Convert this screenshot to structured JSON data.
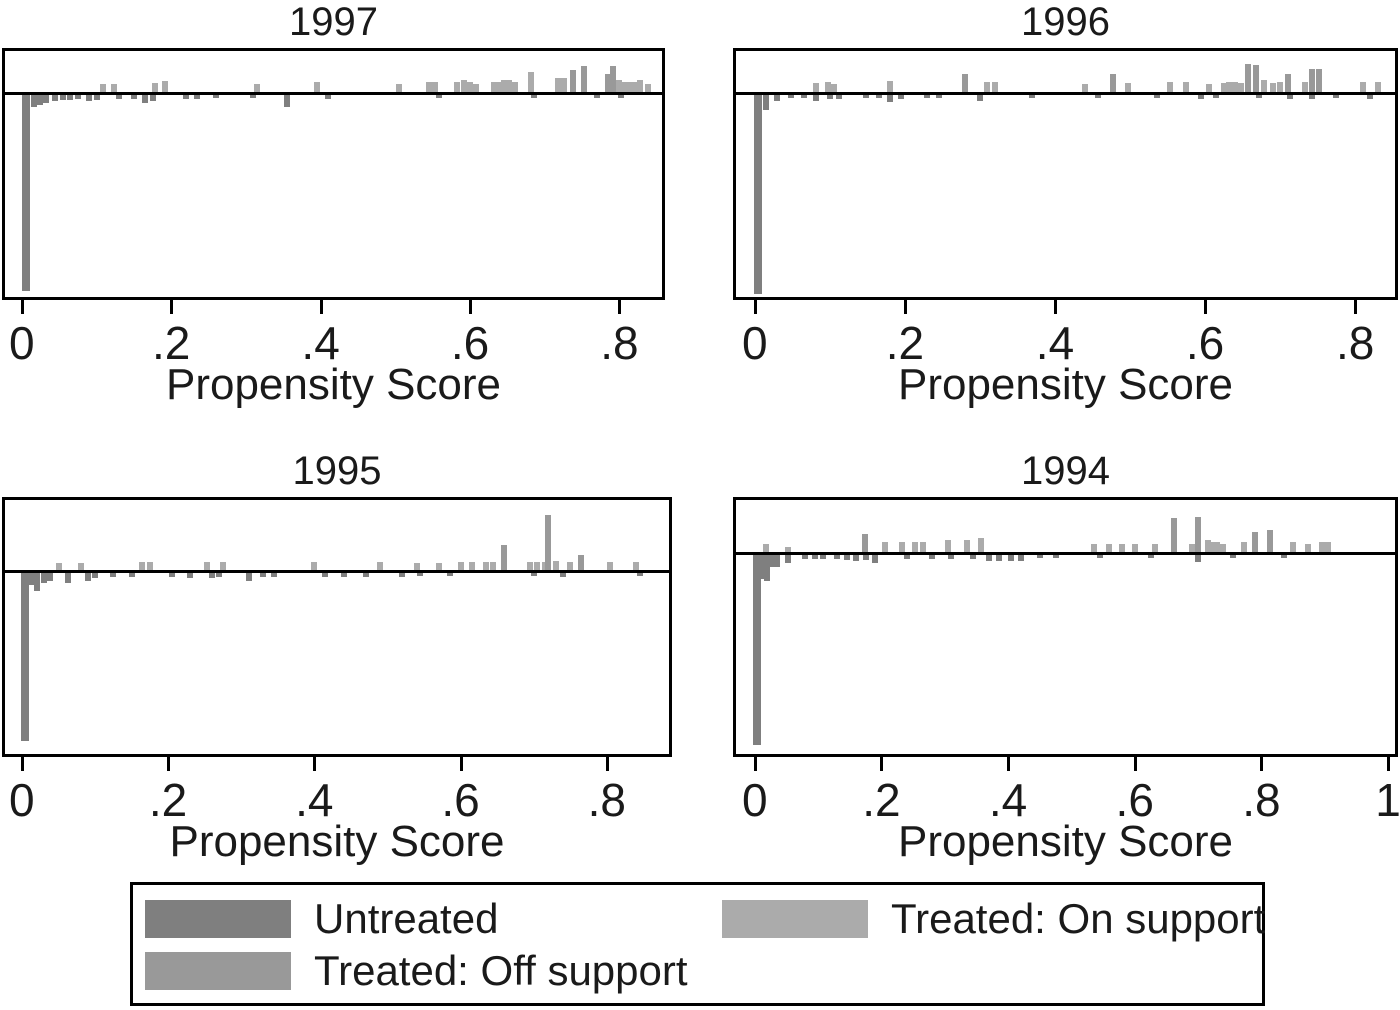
{
  "figure_background": "#ffffff",
  "colors": {
    "untreated": "#7f7f7f",
    "treated_on_support": "#ababab",
    "treated_off_support": "#999999",
    "axis": "#000000",
    "text": "#1a1a1a"
  },
  "legend": {
    "items": [
      {
        "label": "Untreated",
        "color": "#7f7f7f"
      },
      {
        "label": "Treated: On support",
        "color": "#ababab"
      },
      {
        "label": "Treated: Off support",
        "color": "#999999"
      }
    ]
  },
  "chart_data": [
    {
      "type": "bar",
      "title": "1997",
      "xlabel": "Propensity Score",
      "xlim": [
        -0.0225,
        0.857
      ],
      "grid": false,
      "note": "Mirror histogram: treated above zero line, untreated below; no y-axis ticks shown. Heights in relative density units (px of original figure).",
      "xticks": [
        {
          "v": 0.0,
          "label": "0"
        },
        {
          "v": 0.2,
          "label": ".2"
        },
        {
          "v": 0.4,
          "label": ".4"
        },
        {
          "v": 0.6,
          "label": ".6"
        },
        {
          "v": 0.8,
          "label": ".8"
        }
      ],
      "series": [
        {
          "name": "Untreated",
          "group": "untreated",
          "side": "below",
          "bars": [
            [
              0.005,
              -196
            ],
            [
              0.016,
              -12
            ],
            [
              0.024,
              -10
            ],
            [
              0.033,
              -8
            ],
            [
              0.045,
              -6
            ],
            [
              0.055,
              -5
            ],
            [
              0.065,
              -5
            ],
            [
              0.075,
              -4
            ],
            [
              0.09,
              -6
            ],
            [
              0.1,
              -5
            ],
            [
              0.13,
              -4
            ],
            [
              0.15,
              -4
            ],
            [
              0.165,
              -8
            ],
            [
              0.175,
              -6
            ],
            [
              0.22,
              -4
            ],
            [
              0.235,
              -4
            ],
            [
              0.26,
              -3
            ],
            [
              0.31,
              -3
            ],
            [
              0.355,
              -12
            ],
            [
              0.41,
              -4
            ],
            [
              0.558,
              -3
            ],
            [
              0.686,
              -3
            ],
            [
              0.77,
              -3
            ],
            [
              0.802,
              -3
            ]
          ]
        },
        {
          "name": "Treated: On support",
          "group": "treated_on_support",
          "side": "above",
          "bars": [
            [
              0.109,
              8
            ],
            [
              0.123,
              8
            ],
            [
              0.178,
              9
            ],
            [
              0.192,
              11
            ],
            [
              0.315,
              8
            ],
            [
              0.395,
              10
            ],
            [
              0.505,
              8
            ],
            [
              0.545,
              10
            ],
            [
              0.553,
              10
            ],
            [
              0.582,
              10
            ],
            [
              0.592,
              12
            ],
            [
              0.6,
              10
            ],
            [
              0.608,
              8
            ],
            [
              0.632,
              10
            ],
            [
              0.638,
              10
            ],
            [
              0.645,
              12
            ],
            [
              0.652,
              12
            ],
            [
              0.66,
              10
            ],
            [
              0.682,
              20
            ],
            [
              0.718,
              14
            ],
            [
              0.726,
              14
            ],
            [
              0.8,
              12
            ],
            [
              0.805,
              10
            ],
            [
              0.812,
              10
            ],
            [
              0.82,
              10
            ],
            [
              0.828,
              12
            ],
            [
              0.838,
              8
            ]
          ]
        },
        {
          "name": "Treated: Off support",
          "group": "treated_off_support",
          "side": "above",
          "bars": [
            [
              0.738,
              22
            ],
            [
              0.752,
              26
            ],
            [
              0.785,
              18
            ],
            [
              0.792,
              26
            ]
          ]
        }
      ]
    },
    {
      "type": "bar",
      "title": "1996",
      "xlabel": "Propensity Score",
      "xlim": [
        -0.025,
        0.853
      ],
      "grid": false,
      "xticks": [
        {
          "v": 0.0,
          "label": "0"
        },
        {
          "v": 0.2,
          "label": ".2"
        },
        {
          "v": 0.4,
          "label": ".4"
        },
        {
          "v": 0.6,
          "label": ".6"
        },
        {
          "v": 0.8,
          "label": ".8"
        }
      ],
      "series": [
        {
          "name": "Untreated",
          "group": "untreated",
          "side": "below",
          "bars": [
            [
              0.004,
              -199
            ],
            [
              0.015,
              -15
            ],
            [
              0.03,
              -6
            ],
            [
              0.048,
              -3
            ],
            [
              0.065,
              -3
            ],
            [
              0.082,
              -6
            ],
            [
              0.1,
              -4
            ],
            [
              0.112,
              -4
            ],
            [
              0.148,
              -3
            ],
            [
              0.165,
              -3
            ],
            [
              0.18,
              -7
            ],
            [
              0.195,
              -4
            ],
            [
              0.23,
              -3
            ],
            [
              0.245,
              -3
            ],
            [
              0.3,
              -6
            ],
            [
              0.37,
              -3
            ],
            [
              0.457,
              -3
            ],
            [
              0.536,
              -3
            ],
            [
              0.594,
              -4
            ],
            [
              0.614,
              -3
            ],
            [
              0.672,
              -3
            ],
            [
              0.713,
              -4
            ],
            [
              0.742,
              -4
            ],
            [
              0.775,
              -3
            ],
            [
              0.82,
              -4
            ]
          ]
        },
        {
          "name": "Treated: On support",
          "group": "treated_on_support",
          "side": "above",
          "bars": [
            [
              0.082,
              9
            ],
            [
              0.098,
              10
            ],
            [
              0.106,
              8
            ],
            [
              0.18,
              11
            ],
            [
              0.31,
              10
            ],
            [
              0.32,
              10
            ],
            [
              0.44,
              8
            ],
            [
              0.497,
              9
            ],
            [
              0.553,
              10
            ],
            [
              0.575,
              10
            ],
            [
              0.605,
              8
            ],
            [
              0.625,
              9
            ],
            [
              0.632,
              10
            ],
            [
              0.64,
              10
            ],
            [
              0.648,
              9
            ],
            [
              0.678,
              12
            ],
            [
              0.69,
              9
            ],
            [
              0.7,
              10
            ],
            [
              0.733,
              10
            ],
            [
              0.81,
              10
            ],
            [
              0.83,
              10
            ]
          ]
        },
        {
          "name": "Treated: Off support",
          "group": "treated_off_support",
          "side": "above",
          "bars": [
            [
              0.28,
              18
            ],
            [
              0.477,
              18
            ],
            [
              0.657,
              28
            ],
            [
              0.668,
              27
            ],
            [
              0.71,
              18
            ],
            [
              0.742,
              23
            ],
            [
              0.752,
              23
            ]
          ]
        }
      ]
    },
    {
      "type": "bar",
      "title": "1995",
      "xlabel": "Propensity Score",
      "xlim": [
        -0.023,
        0.885
      ],
      "grid": false,
      "xticks": [
        {
          "v": 0.0,
          "label": "0"
        },
        {
          "v": 0.2,
          "label": ".2"
        },
        {
          "v": 0.4,
          "label": ".4"
        },
        {
          "v": 0.6,
          "label": ".6"
        },
        {
          "v": 0.8,
          "label": ".8"
        }
      ],
      "series": [
        {
          "name": "Untreated",
          "group": "untreated",
          "side": "below",
          "bars": [
            [
              0.005,
              -168
            ],
            [
              0.013,
              -12
            ],
            [
              0.021,
              -18
            ],
            [
              0.03,
              -10
            ],
            [
              0.038,
              -8
            ],
            [
              0.063,
              -10
            ],
            [
              0.09,
              -8
            ],
            [
              0.1,
              -5
            ],
            [
              0.125,
              -4
            ],
            [
              0.15,
              -4
            ],
            [
              0.205,
              -4
            ],
            [
              0.23,
              -5
            ],
            [
              0.26,
              -5
            ],
            [
              0.27,
              -4
            ],
            [
              0.31,
              -8
            ],
            [
              0.33,
              -4
            ],
            [
              0.345,
              -4
            ],
            [
              0.415,
              -4
            ],
            [
              0.44,
              -4
            ],
            [
              0.47,
              -4
            ],
            [
              0.52,
              -4
            ],
            [
              0.545,
              -3
            ],
            [
              0.585,
              -3
            ],
            [
              0.7,
              -3
            ],
            [
              0.74,
              -4
            ],
            [
              0.845,
              -3
            ]
          ]
        },
        {
          "name": "Treated: On support",
          "group": "treated_on_support",
          "side": "above",
          "bars": [
            [
              0.051,
              7
            ],
            [
              0.081,
              7
            ],
            [
              0.165,
              8
            ],
            [
              0.175,
              8
            ],
            [
              0.253,
              8
            ],
            [
              0.275,
              8
            ],
            [
              0.4,
              8
            ],
            [
              0.49,
              8
            ],
            [
              0.54,
              7
            ],
            [
              0.57,
              7
            ],
            [
              0.6,
              8
            ],
            [
              0.615,
              8
            ],
            [
              0.635,
              8
            ],
            [
              0.645,
              8
            ],
            [
              0.695,
              8
            ],
            [
              0.705,
              8
            ],
            [
              0.715,
              8
            ],
            [
              0.73,
              9
            ],
            [
              0.75,
              8
            ],
            [
              0.805,
              8
            ],
            [
              0.84,
              8
            ]
          ]
        },
        {
          "name": "Treated: Off support",
          "group": "treated_off_support",
          "side": "above",
          "bars": [
            [
              0.66,
              25
            ],
            [
              0.72,
              55
            ],
            [
              0.765,
              15
            ]
          ]
        }
      ]
    },
    {
      "type": "bar",
      "title": "1994",
      "xlabel": "Propensity Score",
      "xlim": [
        -0.0297,
        1.011
      ],
      "grid": false,
      "xticks": [
        {
          "v": 0.0,
          "label": "0"
        },
        {
          "v": 0.2,
          "label": ".2"
        },
        {
          "v": 0.4,
          "label": ".4"
        },
        {
          "v": 0.6,
          "label": ".6"
        },
        {
          "v": 0.8,
          "label": ".8"
        },
        {
          "v": 1.0,
          "label": "1"
        }
      ],
      "series": [
        {
          "name": "Untreated",
          "group": "untreated",
          "side": "below",
          "bars": [
            [
              0.004,
              -190
            ],
            [
              0.012,
              -24
            ],
            [
              0.02,
              -26
            ],
            [
              0.028,
              -12
            ],
            [
              0.035,
              -12
            ],
            [
              0.052,
              -8
            ],
            [
              0.08,
              -4
            ],
            [
              0.095,
              -4
            ],
            [
              0.108,
              -4
            ],
            [
              0.13,
              -4
            ],
            [
              0.145,
              -5
            ],
            [
              0.16,
              -6
            ],
            [
              0.175,
              -5
            ],
            [
              0.19,
              -8
            ],
            [
              0.24,
              -4
            ],
            [
              0.28,
              -4
            ],
            [
              0.31,
              -4
            ],
            [
              0.345,
              -4
            ],
            [
              0.37,
              -6
            ],
            [
              0.385,
              -6
            ],
            [
              0.404,
              -6
            ],
            [
              0.42,
              -6
            ],
            [
              0.45,
              -3
            ],
            [
              0.475,
              -3
            ],
            [
              0.545,
              -3
            ],
            [
              0.625,
              -3
            ],
            [
              0.7,
              -7
            ],
            [
              0.755,
              -3
            ],
            [
              0.835,
              -3
            ]
          ]
        },
        {
          "name": "Treated: On support",
          "group": "treated_on_support",
          "side": "above",
          "bars": [
            [
              0.017,
              8
            ],
            [
              0.052,
              5
            ],
            [
              0.205,
              10
            ],
            [
              0.232,
              10
            ],
            [
              0.253,
              10
            ],
            [
              0.265,
              10
            ],
            [
              0.305,
              12
            ],
            [
              0.335,
              12
            ],
            [
              0.357,
              14
            ],
            [
              0.536,
              8
            ],
            [
              0.56,
              8
            ],
            [
              0.58,
              8
            ],
            [
              0.6,
              8
            ],
            [
              0.632,
              8
            ],
            [
              0.69,
              8
            ],
            [
              0.715,
              12
            ],
            [
              0.722,
              10
            ],
            [
              0.73,
              10
            ],
            [
              0.74,
              8
            ],
            [
              0.772,
              10
            ],
            [
              0.85,
              10
            ],
            [
              0.873,
              8
            ],
            [
              0.895,
              10
            ],
            [
              0.905,
              10
            ]
          ]
        },
        {
          "name": "Treated: Off support",
          "group": "treated_off_support",
          "side": "above",
          "bars": [
            [
              0.174,
              18
            ],
            [
              0.662,
              34
            ],
            [
              0.7,
              35
            ],
            [
              0.79,
              20
            ],
            [
              0.814,
              22
            ]
          ]
        }
      ]
    }
  ]
}
